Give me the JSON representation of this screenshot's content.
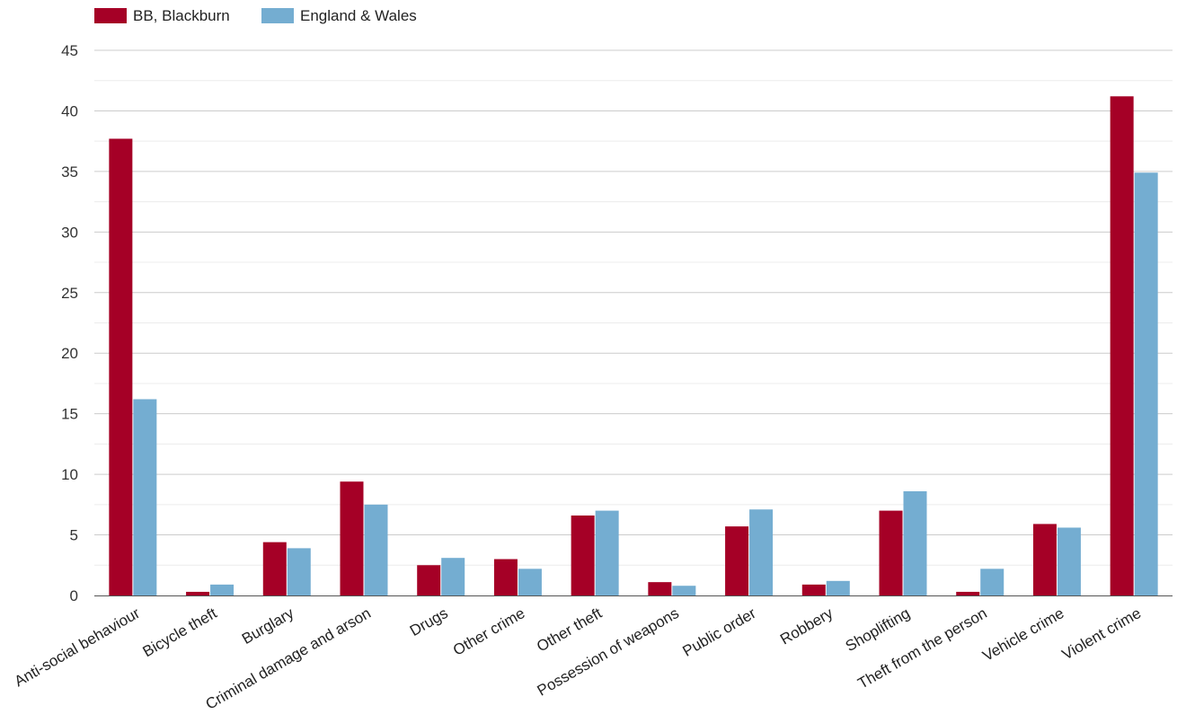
{
  "chart_data": {
    "type": "bar",
    "title": "",
    "xlabel": "",
    "ylabel": "",
    "ylim": [
      0,
      45
    ],
    "y_ticks": [
      0,
      5,
      10,
      15,
      20,
      25,
      30,
      35,
      40,
      45
    ],
    "grid": true,
    "legend_position": "top-left",
    "categories": [
      "Anti-social behaviour",
      "Bicycle theft",
      "Burglary",
      "Criminal damage and arson",
      "Drugs",
      "Other crime",
      "Other theft",
      "Possession of weapons",
      "Public order",
      "Robbery",
      "Shoplifting",
      "Theft from the person",
      "Vehicle crime",
      "Violent crime"
    ],
    "series": [
      {
        "name": "BB, Blackburn",
        "color": "#a50026",
        "values": [
          37.7,
          0.3,
          4.4,
          9.4,
          2.5,
          3.0,
          6.6,
          1.1,
          5.7,
          0.9,
          7.0,
          0.3,
          5.9,
          41.2
        ]
      },
      {
        "name": "England & Wales",
        "color": "#74add1",
        "values": [
          16.2,
          0.9,
          3.9,
          7.5,
          3.1,
          2.2,
          7.0,
          0.8,
          7.1,
          1.2,
          8.6,
          2.2,
          5.6,
          34.9
        ]
      }
    ]
  }
}
